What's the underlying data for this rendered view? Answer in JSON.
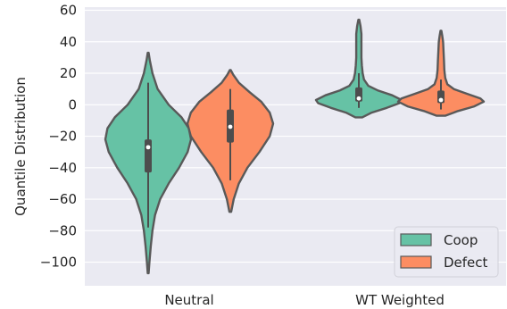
{
  "chart_data": {
    "type": "violin",
    "title": "",
    "xlabel": "",
    "ylabel": "Quantile Distribution",
    "ylim": [
      -115,
      62
    ],
    "yticks": [
      60,
      40,
      20,
      0,
      -20,
      -40,
      -60,
      -80,
      -100
    ],
    "grid": true,
    "legend_position": "bottom-right",
    "categories": [
      "Neutral",
      "WT Weighted"
    ],
    "series": [
      {
        "name": "Coop",
        "color": "#66c2a5",
        "groups": [
          {
            "category": "Neutral",
            "min": -107,
            "max": 33,
            "median": -27,
            "q1": -43,
            "q3": -22,
            "whisker_low": -78,
            "whisker_high": 14,
            "density": [
              [
                -107,
                0.01
              ],
              [
                -100,
                0.03
              ],
              [
                -90,
                0.06
              ],
              [
                -80,
                0.1
              ],
              [
                -70,
                0.16
              ],
              [
                -60,
                0.28
              ],
              [
                -50,
                0.48
              ],
              [
                -40,
                0.72
              ],
              [
                -30,
                0.92
              ],
              [
                -22,
                1.0
              ],
              [
                -15,
                0.95
              ],
              [
                -8,
                0.78
              ],
              [
                0,
                0.48
              ],
              [
                10,
                0.22
              ],
              [
                20,
                0.1
              ],
              [
                28,
                0.04
              ],
              [
                33,
                0.01
              ]
            ]
          },
          {
            "category": "WT Weighted",
            "min": -8,
            "max": 54,
            "median": 4,
            "q1": 2,
            "q3": 11,
            "whisker_low": -2,
            "whisker_high": 20,
            "density": [
              [
                -8,
                0.08
              ],
              [
                -5,
                0.3
              ],
              [
                -2,
                0.65
              ],
              [
                1,
                0.95
              ],
              [
                3,
                1.0
              ],
              [
                6,
                0.78
              ],
              [
                9,
                0.45
              ],
              [
                12,
                0.22
              ],
              [
                16,
                0.12
              ],
              [
                20,
                0.09
              ],
              [
                25,
                0.07
              ],
              [
                30,
                0.06
              ],
              [
                35,
                0.06
              ],
              [
                40,
                0.06
              ],
              [
                45,
                0.06
              ],
              [
                50,
                0.04
              ],
              [
                54,
                0.01
              ]
            ]
          }
        ]
      },
      {
        "name": "Defect",
        "color": "#fc8d62",
        "groups": [
          {
            "category": "Neutral",
            "min": -68,
            "max": 22,
            "median": -14,
            "q1": -24,
            "q3": -3,
            "whisker_low": -48,
            "whisker_high": 10,
            "density": [
              [
                -68,
                0.02
              ],
              [
                -60,
                0.08
              ],
              [
                -50,
                0.2
              ],
              [
                -40,
                0.4
              ],
              [
                -30,
                0.68
              ],
              [
                -20,
                0.92
              ],
              [
                -12,
                1.0
              ],
              [
                -5,
                0.92
              ],
              [
                2,
                0.72
              ],
              [
                8,
                0.45
              ],
              [
                14,
                0.2
              ],
              [
                19,
                0.07
              ],
              [
                22,
                0.01
              ]
            ]
          },
          {
            "category": "WT Weighted",
            "min": -7,
            "max": 47,
            "median": 3,
            "q1": 1,
            "q3": 9,
            "whisker_low": -3,
            "whisker_high": 16,
            "density": [
              [
                -7,
                0.1
              ],
              [
                -4,
                0.4
              ],
              [
                -1,
                0.78
              ],
              [
                2,
                1.0
              ],
              [
                4,
                0.92
              ],
              [
                7,
                0.6
              ],
              [
                10,
                0.3
              ],
              [
                13,
                0.15
              ],
              [
                17,
                0.1
              ],
              [
                22,
                0.08
              ],
              [
                28,
                0.07
              ],
              [
                34,
                0.06
              ],
              [
                40,
                0.05
              ],
              [
                44,
                0.03
              ],
              [
                47,
                0.01
              ]
            ]
          }
        ]
      }
    ]
  }
}
